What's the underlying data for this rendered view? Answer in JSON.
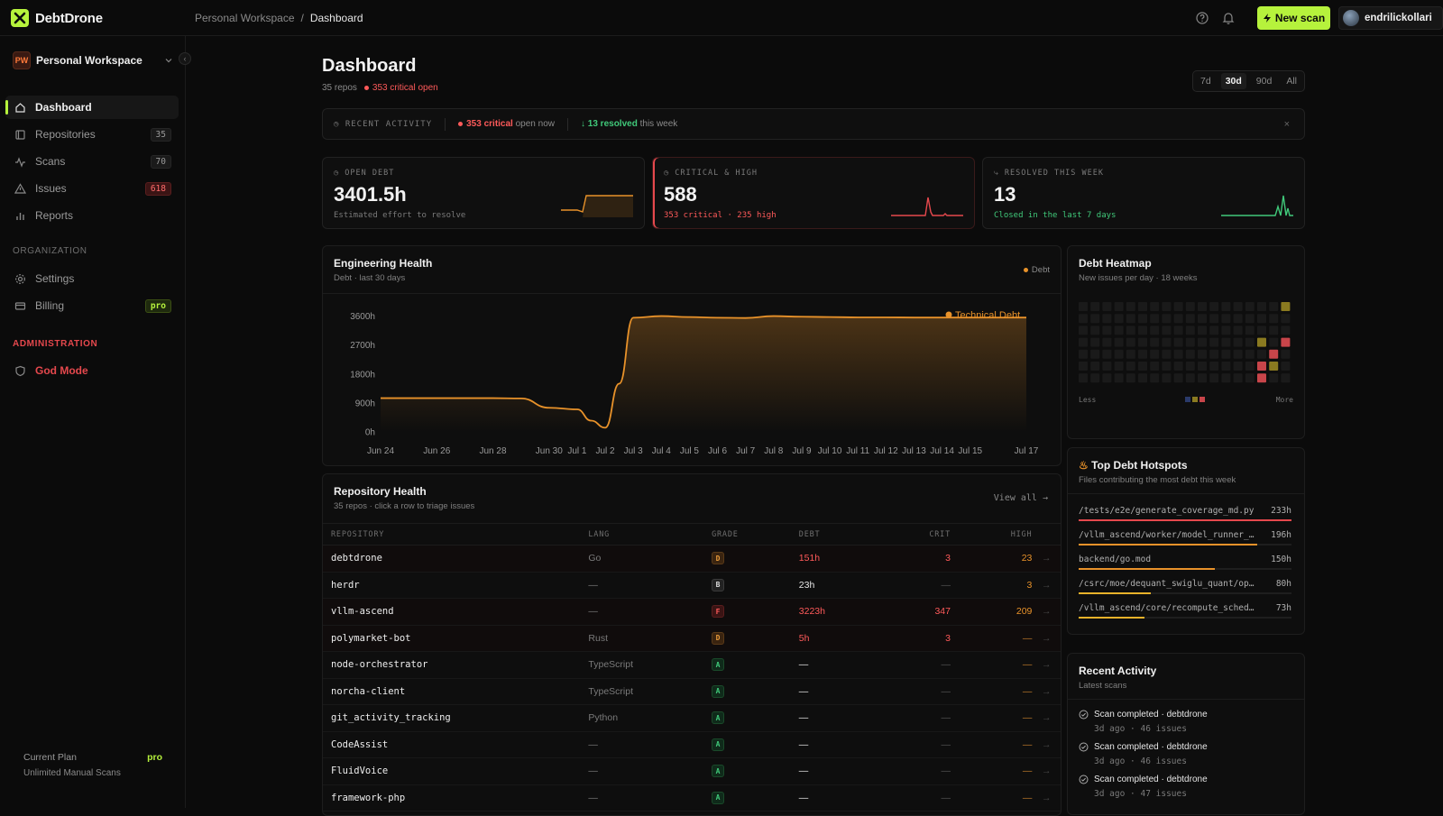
{
  "app": {
    "name": "DebtDrone"
  },
  "breadcrumb": {
    "workspace": "Personal Workspace",
    "separator": "/",
    "current": "Dashboard"
  },
  "topbar": {
    "new_scan_label": "New scan",
    "username": "endrilickollari",
    "icons": [
      "help-icon",
      "bell-icon"
    ]
  },
  "sidebar": {
    "workspace": {
      "badge": "PW",
      "name": "Personal Workspace"
    },
    "nav": [
      {
        "label": "Dashboard",
        "icon": "home-icon",
        "count": ""
      },
      {
        "label": "Repositories",
        "icon": "repo-icon",
        "count": "35"
      },
      {
        "label": "Scans",
        "icon": "pulse-icon",
        "count": "70"
      },
      {
        "label": "Issues",
        "icon": "warning-icon",
        "count": "618"
      },
      {
        "label": "Reports",
        "icon": "bar-chart-icon",
        "count": ""
      }
    ],
    "org_heading": "ORGANIZATION",
    "org_nav": [
      {
        "label": "Settings",
        "icon": "gear-icon",
        "badge": ""
      },
      {
        "label": "Billing",
        "icon": "card-icon",
        "badge": "pro"
      }
    ],
    "admin_heading": "ADMINISTRATION",
    "admin_nav": [
      {
        "label": "God Mode",
        "icon": "shield-icon"
      }
    ],
    "plan": {
      "label": "Current Plan",
      "tier": "pro",
      "desc": "Unlimited Manual Scans"
    }
  },
  "header": {
    "title": "Dashboard",
    "repos": "35 repos",
    "critical": "353 critical open"
  },
  "range": {
    "options": [
      "7d",
      "30d",
      "90d",
      "All"
    ],
    "selected": "30d"
  },
  "activity_bar": {
    "label": "RECENT ACTIVITY",
    "critical": "353 critical",
    "critical_suffix": "open now",
    "resolved": "13 resolved",
    "resolved_suffix": "this week",
    "close": "×"
  },
  "stats": [
    {
      "label": "OPEN DEBT",
      "value": "3401.5h",
      "desc": "Estimated effort to resolve",
      "color": "#e8922a"
    },
    {
      "label": "CRITICAL & HIGH",
      "value": "588",
      "desc": "353 critical · 235 high",
      "color": "#e5484d"
    },
    {
      "label": "RESOLVED THIS WEEK",
      "value": "13",
      "desc": "Closed in the last 7 days",
      "color": "#40c97a"
    }
  ],
  "eng_health": {
    "title": "Engineering Health",
    "subtitle": "Debt · last 30 days",
    "legend_small": "Debt"
  },
  "chart_data": {
    "type": "area",
    "title": "",
    "x": [
      "Jun 24",
      "Jun 26",
      "Jun 28",
      "Jun 30",
      "Jul 1",
      "Jul 2",
      "Jul 3",
      "Jul 4",
      "Jul 5",
      "Jul 6",
      "Jul 7",
      "Jul 8",
      "Jul 9",
      "Jul 10",
      "Jul 11",
      "Jul 12",
      "Jul 13",
      "Jul 14",
      "Jul 15",
      "Jul 17"
    ],
    "series": [
      {
        "name": "Technical Debt",
        "color": "#e8922a",
        "points": [
          [
            "Jun 24",
            1050
          ],
          [
            "Jun 26",
            1050
          ],
          [
            "Jun 28",
            1050
          ],
          [
            "Jun 29",
            1040
          ],
          [
            "Jun 30",
            750
          ],
          [
            "Jul 1",
            700
          ],
          [
            "Jul 1.5",
            350
          ],
          [
            "Jul 2",
            130
          ],
          [
            "Jul 2.5",
            1500
          ],
          [
            "Jul 3",
            3550
          ],
          [
            "Jul 4",
            3600
          ],
          [
            "Jul 5",
            3570
          ],
          [
            "Jul 6",
            3550
          ],
          [
            "Jul 7",
            3540
          ],
          [
            "Jul 8",
            3600
          ],
          [
            "Jul 9",
            3580
          ],
          [
            "Jul 10",
            3570
          ],
          [
            "Jul 11",
            3560
          ],
          [
            "Jul 12",
            3560
          ],
          [
            "Jul 13",
            3555
          ],
          [
            "Jul 14",
            3555
          ],
          [
            "Jul 15",
            3555
          ],
          [
            "Jul 17",
            3555
          ]
        ]
      }
    ],
    "y_ticks": [
      "0h",
      "900h",
      "1800h",
      "2700h",
      "3600h"
    ],
    "ylim": [
      0,
      3700
    ],
    "grid": false,
    "legend": "top-right"
  },
  "heatmap": {
    "title": "Debt Heatmap",
    "subtitle": "New issues per day · 18 weeks",
    "less": "Less",
    "more": "More"
  },
  "repo_health": {
    "title": "Repository Health",
    "subtitle": "35 repos · click a row to triage issues",
    "view_all": "View all →",
    "columns": [
      "REPOSITORY",
      "LANG",
      "GRADE",
      "DEBT",
      "CRIT",
      "HIGH"
    ],
    "rows": [
      {
        "name": "debtdrone",
        "lang": "Go",
        "grade": "D",
        "debt": "151h",
        "crit": "3",
        "high": "23"
      },
      {
        "name": "herdr",
        "lang": "—",
        "grade": "B",
        "debt": "23h",
        "crit": "—",
        "high": "3"
      },
      {
        "name": "vllm-ascend",
        "lang": "—",
        "grade": "F",
        "debt": "3223h",
        "crit": "347",
        "high": "209"
      },
      {
        "name": "polymarket-bot",
        "lang": "Rust",
        "grade": "D",
        "debt": "5h",
        "crit": "3",
        "high": "—"
      },
      {
        "name": "node-orchestrator",
        "lang": "TypeScript",
        "grade": "A",
        "debt": "—",
        "crit": "—",
        "high": "—"
      },
      {
        "name": "norcha-client",
        "lang": "TypeScript",
        "grade": "A",
        "debt": "—",
        "crit": "—",
        "high": "—"
      },
      {
        "name": "git_activity_tracking",
        "lang": "Python",
        "grade": "A",
        "debt": "—",
        "crit": "—",
        "high": "—"
      },
      {
        "name": "CodeAssist",
        "lang": "—",
        "grade": "A",
        "debt": "—",
        "crit": "—",
        "high": "—"
      },
      {
        "name": "FluidVoice",
        "lang": "—",
        "grade": "A",
        "debt": "—",
        "crit": "—",
        "high": "—"
      },
      {
        "name": "framework-php",
        "lang": "—",
        "grade": "A",
        "debt": "—",
        "crit": "—",
        "high": "—"
      }
    ]
  },
  "hotspots": {
    "title": "Top Debt Hotspots",
    "subtitle": "Files contributing the most debt this week",
    "items": [
      {
        "path": "/tests/e2e/generate_coverage_md.py",
        "hours": "233h",
        "share": 1.0,
        "color": "#e5484d"
      },
      {
        "path": "/vllm_ascend/worker/model_runner_v1.…",
        "hours": "196h",
        "share": 0.84,
        "color": "#e8922a"
      },
      {
        "path": "backend/go.mod",
        "hours": "150h",
        "share": 0.64,
        "color": "#e8922a"
      },
      {
        "path": "/csrc/moe/dequant_swiglu_quant/op_hos…",
        "hours": "80h",
        "share": 0.34,
        "color": "#e8b22a"
      },
      {
        "path": "/vllm_ascend/core/recompute_scheduler…",
        "hours": "73h",
        "share": 0.31,
        "color": "#e8b22a"
      }
    ]
  },
  "recent": {
    "title": "Recent Activity",
    "subtitle": "Latest scans",
    "items": [
      {
        "title": "Scan completed · debtdrone",
        "meta": "3d ago · 46 issues"
      },
      {
        "title": "Scan completed · debtdrone",
        "meta": "3d ago · 46 issues"
      },
      {
        "title": "Scan completed · debtdrone",
        "meta": "3d ago · 47 issues"
      }
    ]
  }
}
